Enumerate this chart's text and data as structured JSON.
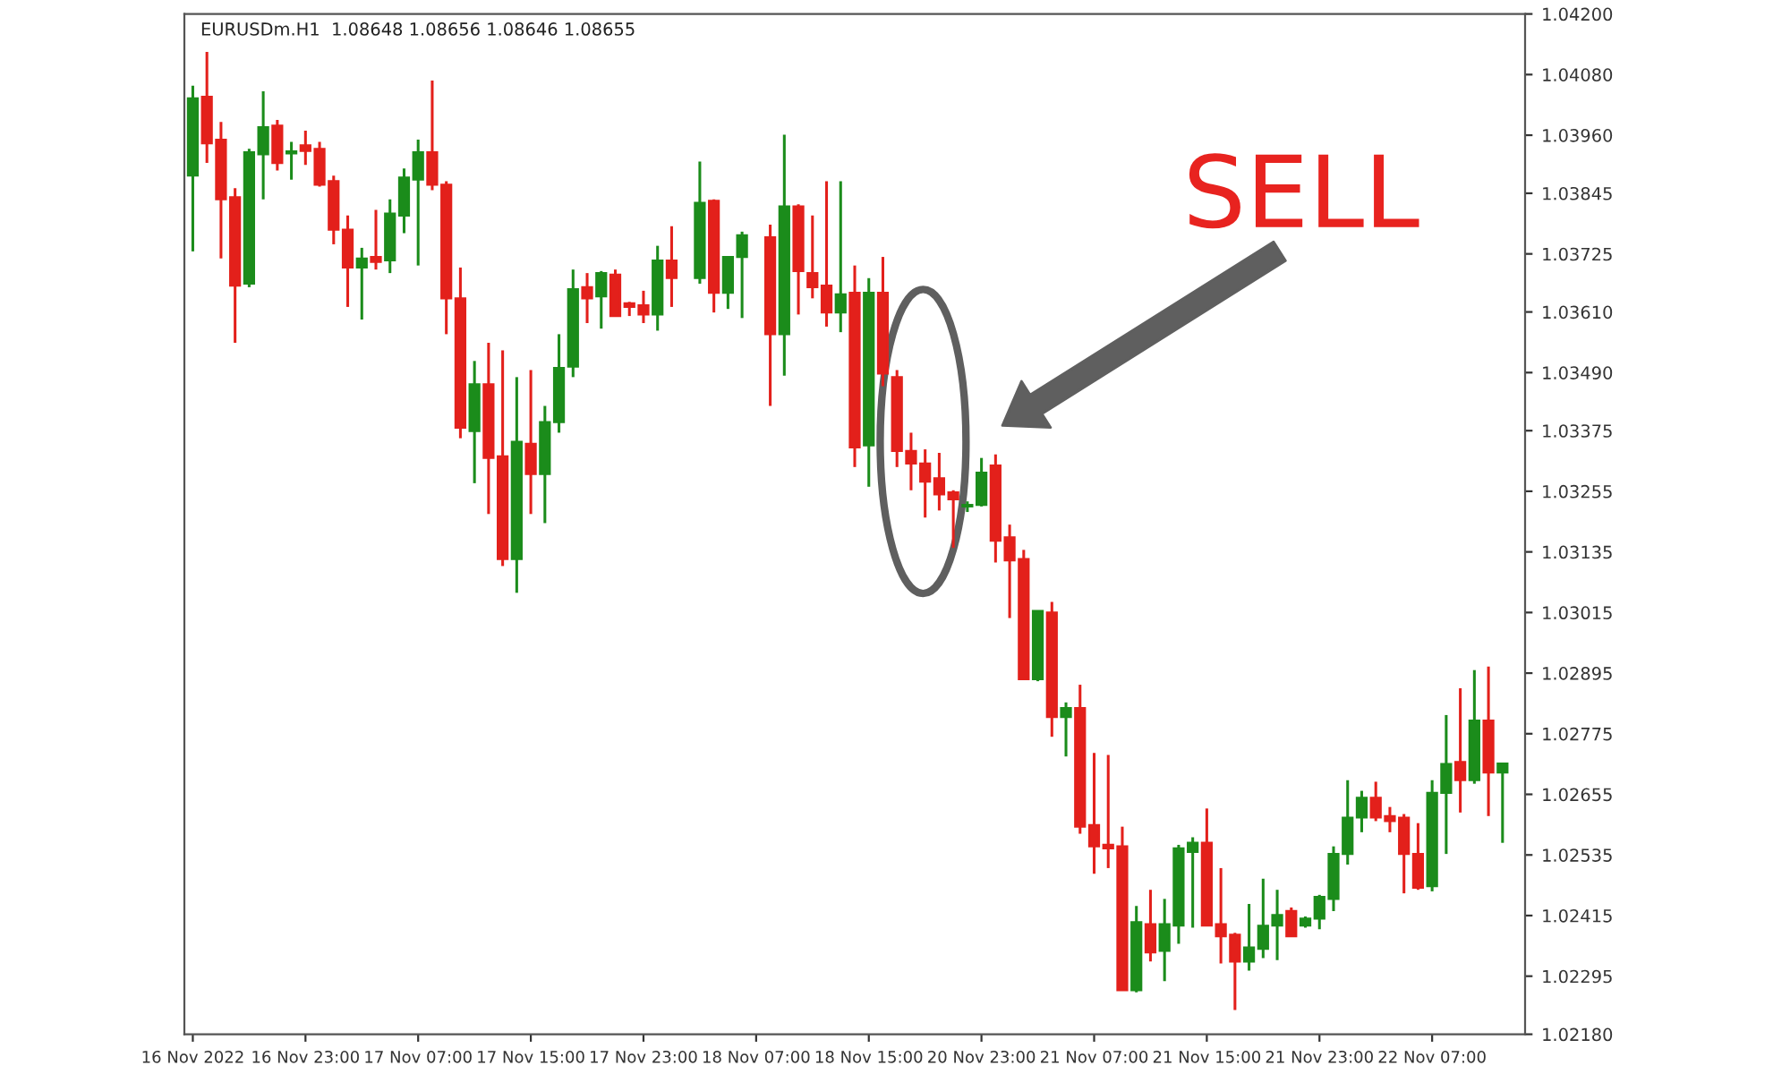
{
  "chart_data": {
    "type": "candlestick",
    "title": "EURUSDm.H1  1.08648 1.08656 1.08646 1.08655",
    "annotations": [
      "SELL"
    ],
    "categories": [
      "16 Nov 2022",
      null,
      null,
      null,
      null,
      null,
      null,
      null,
      "16 Nov 23:00",
      null,
      null,
      null,
      null,
      null,
      null,
      null,
      "17 Nov 07:00",
      null,
      null,
      null,
      null,
      null,
      null,
      null,
      "17 Nov 15:00",
      null,
      null,
      null,
      null,
      null,
      null,
      null,
      "17 Nov 23:00",
      null,
      null,
      null,
      null,
      null,
      null,
      null,
      "18 Nov 07:00",
      null,
      null,
      null,
      null,
      null,
      null,
      null,
      "18 Nov 15:00",
      null,
      null,
      null,
      null,
      null,
      null,
      null,
      "20 Nov 23:00",
      null,
      null,
      null,
      null,
      null,
      null,
      null,
      "21 Nov 07:00",
      null,
      null,
      null,
      null,
      null,
      null,
      null,
      "21 Nov 15:00",
      null,
      null,
      null,
      null,
      null,
      null,
      null,
      "21 Nov 23:00",
      null,
      null,
      null,
      null,
      null,
      null,
      null,
      "22 Nov 07:00",
      null,
      null,
      null,
      null,
      null
    ],
    "colors": [
      "#1b8c1b",
      "#e3201b",
      "#e3201b",
      "#e3201b",
      "#1b8c1b",
      "#1b8c1b",
      "#e3201b",
      "#1b8c1b",
      "#e3201b",
      "#e3201b",
      "#e3201b",
      "#e3201b",
      "#1b8c1b",
      "#e3201b",
      "#1b8c1b",
      "#1b8c1b",
      "#1b8c1b",
      "#e3201b",
      "#e3201b",
      "#e3201b",
      "#1b8c1b",
      "#e3201b",
      "#e3201b",
      "#1b8c1b",
      "#e3201b",
      "#1b8c1b",
      "#1b8c1b",
      "#1b8c1b",
      "#e3201b",
      "#1b8c1b",
      "#e3201b",
      "#e3201b",
      "#e3201b",
      "#1b8c1b",
      "#e3201b",
      null,
      "#1b8c1b",
      "#e3201b",
      "#1b8c1b",
      "#1b8c1b",
      null,
      "#e3201b",
      "#1b8c1b",
      "#e3201b",
      "#e3201b",
      "#e3201b",
      "#1b8c1b",
      "#e3201b",
      "#1b8c1b",
      "#e3201b",
      "#e3201b",
      "#e3201b",
      "#e3201b",
      "#e3201b",
      "#e3201b",
      "#1b8c1b",
      "#1b8c1b",
      "#e3201b",
      "#e3201b",
      "#e3201b",
      "#1b8c1b",
      "#e3201b",
      "#1b8c1b",
      "#e3201b",
      "#e3201b",
      "#e3201b",
      "#e3201b",
      "#1b8c1b",
      "#e3201b",
      "#1b8c1b",
      "#1b8c1b",
      "#1b8c1b",
      "#e3201b",
      "#e3201b",
      "#e3201b",
      "#1b8c1b",
      "#1b8c1b",
      "#1b8c1b",
      "#e3201b",
      "#1b8c1b",
      "#1b8c1b",
      "#1b8c1b",
      "#1b8c1b",
      "#1b8c1b",
      "#e3201b",
      "#e3201b",
      "#e3201b",
      "#e3201b",
      "#1b8c1b",
      "#1b8c1b",
      "#e3201b",
      "#1b8c1b",
      "#e3201b",
      "#1b8c1b"
    ],
    "ohlc": [
      [
        1.0388,
        1.04058,
        1.0373,
        1.04033
      ],
      [
        1.04036,
        1.04125,
        1.03905,
        1.03944
      ],
      [
        1.03951,
        1.03986,
        1.03716,
        1.03833
      ],
      [
        1.03837,
        1.03855,
        1.03549,
        1.03662
      ],
      [
        1.03666,
        1.03933,
        1.03659,
        1.03926
      ],
      [
        1.03922,
        1.04047,
        1.03833,
        1.03976
      ],
      [
        1.03979,
        1.0399,
        1.0389,
        1.03905
      ],
      [
        1.03924,
        1.03947,
        1.03872,
        1.03928
      ],
      [
        1.0394,
        1.03969,
        1.03901,
        1.03929
      ],
      [
        1.03933,
        1.03947,
        1.03858,
        1.03862
      ],
      [
        1.03869,
        1.0388,
        1.03744,
        1.03773
      ],
      [
        1.03773,
        1.03801,
        1.0362,
        1.03698
      ],
      [
        1.03698,
        1.03737,
        1.03595,
        1.03716
      ],
      [
        1.03719,
        1.03812,
        1.03694,
        1.03709
      ],
      [
        1.03712,
        1.03833,
        1.03687,
        1.03805
      ],
      [
        1.03801,
        1.03894,
        1.03766,
        1.03876
      ],
      [
        1.03872,
        1.03951,
        1.03702,
        1.03926
      ],
      [
        1.03926,
        1.04068,
        1.03851,
        1.03862
      ],
      [
        1.03862,
        1.03869,
        1.03566,
        1.03637
      ],
      [
        1.03637,
        1.03698,
        1.0336,
        1.03381
      ],
      [
        1.03374,
        1.03513,
        1.03271,
        1.03467
      ],
      [
        1.03467,
        1.03549,
        1.0321,
        1.03321
      ],
      [
        1.03324,
        1.03534,
        1.03107,
        1.03121
      ],
      [
        1.03121,
        1.03481,
        1.03054,
        1.03353
      ],
      [
        1.03349,
        1.03495,
        1.0321,
        1.03289
      ],
      [
        1.03289,
        1.03424,
        1.03192,
        1.03392
      ],
      [
        1.03392,
        1.03566,
        1.03371,
        1.03499
      ],
      [
        1.03502,
        1.03694,
        1.03481,
        1.03655
      ],
      [
        1.03659,
        1.03687,
        1.03588,
        1.03637
      ],
      [
        1.03641,
        1.03691,
        1.03577,
        1.03687
      ],
      [
        1.03684,
        1.03694,
        1.03602,
        1.03602
      ],
      [
        1.03627,
        1.0363,
        1.03602,
        1.0362
      ],
      [
        1.03623,
        1.03652,
        1.03588,
        1.03605
      ],
      [
        1.03605,
        1.03741,
        1.03573,
        1.03712
      ],
      [
        1.03712,
        1.0378,
        1.0362,
        1.03677
      ],
      null,
      [
        1.03677,
        1.03908,
        1.03666,
        1.03826
      ],
      [
        1.0383,
        1.03833,
        1.03609,
        1.03648
      ],
      [
        1.03648,
        1.03719,
        1.03616,
        1.03719
      ],
      [
        1.03719,
        1.03769,
        1.03598,
        1.03762
      ],
      null,
      [
        1.03758,
        1.03783,
        1.03424,
        1.03566
      ],
      [
        1.03566,
        1.03961,
        1.03484,
        1.03819
      ],
      [
        1.03819,
        1.03823,
        1.03605,
        1.03691
      ],
      [
        1.03687,
        1.03801,
        1.03637,
        1.03659
      ],
      [
        1.03662,
        1.03869,
        1.03581,
        1.03609
      ],
      [
        1.03609,
        1.03869,
        1.0357,
        1.03645
      ],
      [
        1.03648,
        1.03702,
        1.03303,
        1.03342
      ],
      [
        1.03346,
        1.03677,
        1.03264,
        1.03648
      ],
      [
        1.03648,
        1.03719,
        1.03463,
        1.03488
      ],
      [
        1.03481,
        1.03495,
        1.03303,
        1.03335
      ],
      [
        1.03335,
        1.03371,
        1.03257,
        1.0331
      ],
      [
        1.0331,
        1.03338,
        1.03203,
        1.03274
      ],
      [
        1.03281,
        1.03331,
        1.03217,
        1.03249
      ],
      [
        1.03253,
        1.03257,
        1.03143,
        1.03239
      ],
      [
        1.03225,
        1.03235,
        1.03214,
        1.03228
      ],
      [
        1.03228,
        1.03321,
        1.03225,
        1.03292
      ],
      [
        1.03306,
        1.03328,
        1.03114,
        1.03157
      ],
      [
        1.03164,
        1.03189,
        1.03004,
        1.03118
      ],
      [
        1.03121,
        1.03139,
        1.02883,
        1.02883
      ],
      [
        1.02883,
        1.03018,
        1.02879,
        1.03018
      ],
      [
        1.03015,
        1.03036,
        1.02769,
        1.02808
      ],
      [
        1.02808,
        1.02837,
        1.0273,
        1.02826
      ],
      [
        1.02826,
        1.02872,
        1.02577,
        1.02591
      ],
      [
        1.02594,
        1.02737,
        1.02498,
        1.02552
      ],
      [
        1.02555,
        1.02733,
        1.02509,
        1.02548
      ],
      [
        1.02552,
        1.02591,
        1.02267,
        1.02267
      ],
      [
        1.02267,
        1.02434,
        1.02263,
        1.02402
      ],
      [
        1.02398,
        1.02466,
        1.02324,
        1.02342
      ],
      [
        1.02345,
        1.02448,
        1.02285,
        1.02398
      ],
      [
        1.02395,
        1.02555,
        1.02359,
        1.02548
      ],
      [
        1.02541,
        1.0257,
        1.02391,
        1.02559
      ],
      [
        1.02559,
        1.02627,
        1.02395,
        1.02395
      ],
      [
        1.02398,
        1.02509,
        1.0232,
        1.02374
      ],
      [
        1.02377,
        1.02381,
        1.02228,
        1.02324
      ],
      [
        1.02324,
        1.02438,
        1.02306,
        1.02352
      ],
      [
        1.02349,
        1.02488,
        1.02331,
        1.02395
      ],
      [
        1.02395,
        1.02466,
        1.02327,
        1.02416
      ],
      [
        1.02424,
        1.02431,
        1.02374,
        1.02374
      ],
      [
        1.02395,
        1.02413,
        1.02391,
        1.02409
      ],
      [
        1.02409,
        1.02456,
        1.02388,
        1.02452
      ],
      [
        1.02448,
        1.02552,
        1.02424,
        1.02537
      ],
      [
        1.02537,
        1.02683,
        1.02516,
        1.02609
      ],
      [
        1.02609,
        1.02662,
        1.0258,
        1.02648
      ],
      [
        1.02648,
        1.0268,
        1.02602,
        1.02609
      ],
      [
        1.02612,
        1.0263,
        1.0258,
        1.02602
      ],
      [
        1.02609,
        1.02616,
        1.02459,
        1.02537
      ],
      [
        1.02537,
        1.02598,
        1.02466,
        1.0247
      ],
      [
        1.02473,
        1.02683,
        1.02463,
        1.02658
      ],
      [
        1.02658,
        1.02812,
        1.02537,
        1.02715
      ],
      [
        1.02719,
        1.02865,
        1.02619,
        1.02683
      ],
      [
        1.02683,
        1.02901,
        1.02676,
        1.02801
      ],
      [
        1.02801,
        1.02908,
        1.02612,
        1.02698
      ],
      [
        1.02698,
        1.02716,
        1.02559,
        1.02716
      ]
    ],
    "ylim": [
      1.0218,
      1.042
    ],
    "yticks": [
      {
        "value": 1.042,
        "label": "1.04200"
      },
      {
        "value": 1.0408,
        "label": "1.04080"
      },
      {
        "value": 1.0396,
        "label": "1.03960"
      },
      {
        "value": 1.03845,
        "label": "1.03845"
      },
      {
        "value": 1.03725,
        "label": "1.03725"
      },
      {
        "value": 1.0361,
        "label": "1.03610"
      },
      {
        "value": 1.0349,
        "label": "1.03490"
      },
      {
        "value": 1.03375,
        "label": "1.03375"
      },
      {
        "value": 1.03255,
        "label": "1.03255"
      },
      {
        "value": 1.03135,
        "label": "1.03135"
      },
      {
        "value": 1.03015,
        "label": "1.03015"
      },
      {
        "value": 1.02895,
        "label": "1.02895"
      },
      {
        "value": 1.02775,
        "label": "1.02775"
      },
      {
        "value": 1.02655,
        "label": "1.02655"
      },
      {
        "value": 1.02535,
        "label": "1.02535"
      },
      {
        "value": 1.02415,
        "label": "1.02415"
      },
      {
        "value": 1.02295,
        "label": "1.02295"
      },
      {
        "value": 1.0218,
        "label": "1.02180"
      }
    ]
  }
}
